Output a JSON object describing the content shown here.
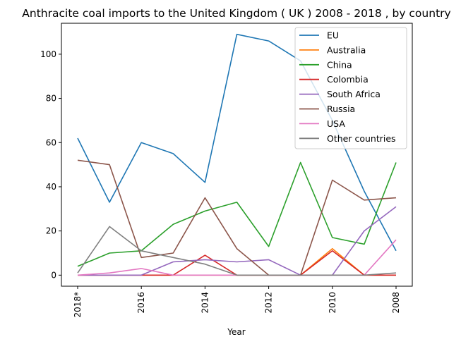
{
  "chart_data": {
    "type": "line",
    "title": "Anthracite coal imports to the United Kingdom ( UK ) 2008 - 2018 , by country",
    "xlabel": "Year",
    "ylabel": "",
    "x": [
      "2018*",
      "2017",
      "2016",
      "2015",
      "2014",
      "2013",
      "2012",
      "2011",
      "2010",
      "2009",
      "2008"
    ],
    "x_tick_labels": [
      "2018*",
      "",
      "2016",
      "",
      "2014",
      "",
      "2012",
      "",
      "2010",
      "",
      "2008"
    ],
    "ylim": [
      -5,
      114
    ],
    "y_ticks": [
      0,
      20,
      40,
      60,
      80,
      100
    ],
    "grid": false,
    "legend_position": "top-right",
    "series": [
      {
        "name": "EU",
        "color": "#1f77b4",
        "values": [
          62,
          33,
          60,
          55,
          42,
          109,
          106,
          97,
          70,
          38,
          11
        ]
      },
      {
        "name": "Australia",
        "color": "#ff7f0e",
        "values": [
          0,
          0,
          0,
          0,
          0,
          0,
          0,
          0,
          12,
          0,
          0
        ]
      },
      {
        "name": "China",
        "color": "#2ca02c",
        "values": [
          4,
          10,
          11,
          23,
          29,
          33,
          13,
          51,
          17,
          14,
          51
        ]
      },
      {
        "name": "Colombia",
        "color": "#d62728",
        "values": [
          0,
          0,
          0,
          0,
          9,
          0,
          0,
          0,
          11,
          0,
          0
        ]
      },
      {
        "name": "South Africa",
        "color": "#9467bd",
        "values": [
          0,
          0,
          0,
          6,
          7,
          6,
          7,
          0,
          0,
          20,
          31
        ]
      },
      {
        "name": "Russia",
        "color": "#8c564b",
        "values": [
          52,
          50,
          8,
          10,
          35,
          12,
          0,
          0,
          43,
          34,
          35
        ]
      },
      {
        "name": "USA",
        "color": "#e377c2",
        "values": [
          0,
          1,
          3,
          0,
          0,
          0,
          0,
          0,
          0,
          0,
          16
        ]
      },
      {
        "name": "Other countries",
        "color": "#7f7f7f",
        "values": [
          1,
          22,
          11,
          8,
          5,
          0,
          0,
          0,
          0,
          0,
          1
        ]
      }
    ]
  }
}
